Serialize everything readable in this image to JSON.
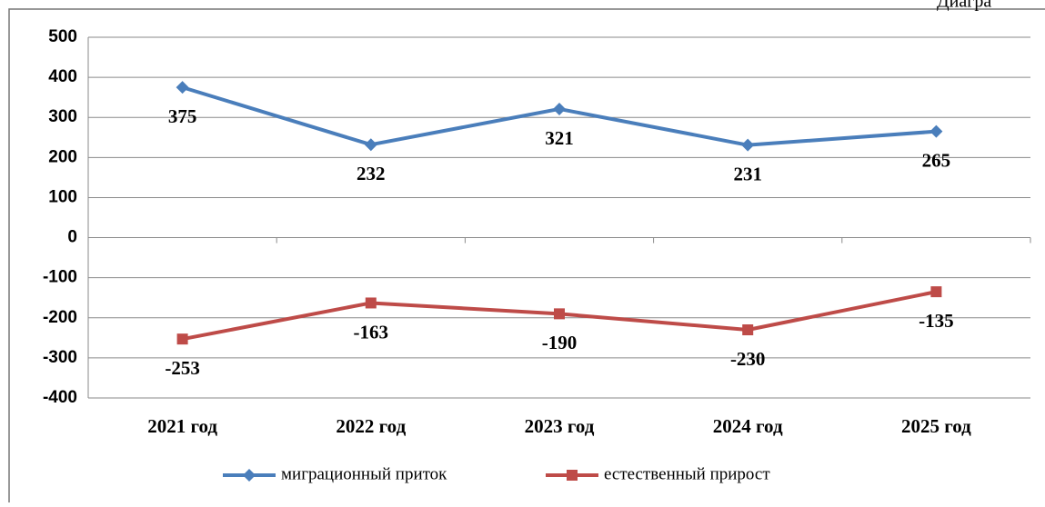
{
  "corner_text": "Диагра",
  "chart_data": {
    "type": "line",
    "categories": [
      "2021 год",
      "2022 год",
      "2023 год",
      "2024 год",
      "2025 год"
    ],
    "series": [
      {
        "name": "миграционный приток",
        "color": "#4a7ebb",
        "values": [
          375,
          232,
          321,
          231,
          265
        ]
      },
      {
        "name": "естественный прирост",
        "color": "#be4b48",
        "values": [
          -253,
          -163,
          -190,
          -230,
          -135
        ]
      }
    ],
    "ylim": [
      -400,
      500
    ],
    "yticks": [
      -400,
      -300,
      -200,
      -100,
      0,
      100,
      200,
      300,
      400,
      500
    ],
    "grid": true,
    "legend": "bottom"
  }
}
